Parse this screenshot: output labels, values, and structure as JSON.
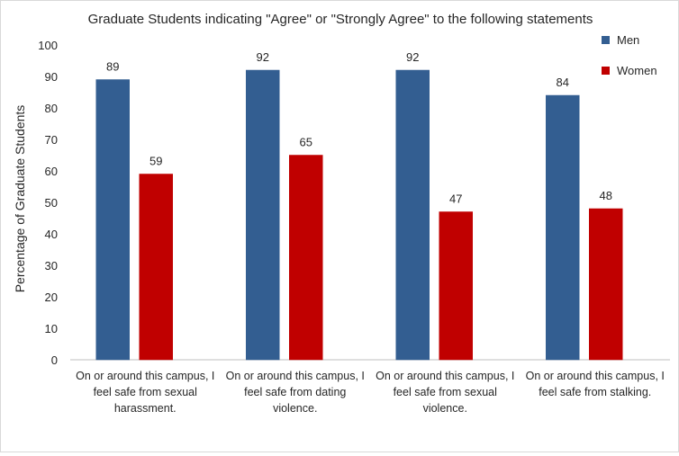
{
  "chart_data": {
    "type": "bar",
    "title": "Graduate Students indicating \"Agree\" or \"Strongly Agree\" to the following statements",
    "ylabel": "Percentage of Graduate Students",
    "xlabel": "",
    "ylim": [
      0,
      100
    ],
    "yticks": [
      0,
      10,
      20,
      30,
      40,
      50,
      60,
      70,
      80,
      90,
      100
    ],
    "grid": false,
    "legend_position": "top-right",
    "categories": [
      [
        "On or around this campus, I",
        "feel safe from sexual",
        "harassment."
      ],
      [
        "On or around this campus, I",
        "feel safe from dating",
        "violence."
      ],
      [
        "On or around this campus, I",
        "feel safe from sexual",
        "violence."
      ],
      [
        "On or around this campus, I",
        "feel safe from stalking."
      ]
    ],
    "series": [
      {
        "name": "Men",
        "color": "#335e91",
        "values": [
          89,
          92,
          92,
          84
        ]
      },
      {
        "name": "Women",
        "color": "#c00000",
        "values": [
          59,
          65,
          47,
          48
        ]
      }
    ]
  }
}
